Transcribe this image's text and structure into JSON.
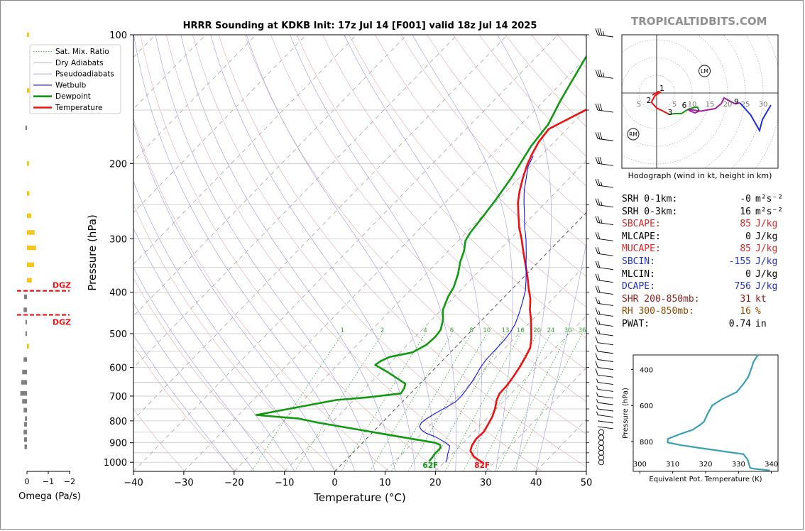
{
  "chart_data": {
    "type": "line",
    "title": "HRRR Sounding at KDKB Init: 17z Jul 14 [F001] valid 18z Jul 14 2025",
    "xlabel": "Temperature (°C)",
    "ylabel": "Pressure (hPa)",
    "xlim": [
      -40,
      50
    ],
    "ylim": [
      1050,
      100
    ],
    "yscale": "log",
    "x_ticks": [
      "−40",
      "−30",
      "−20",
      "−10",
      "0",
      "10",
      "20",
      "30",
      "40",
      "50"
    ],
    "x_tick_values": [
      -40,
      -30,
      -20,
      -10,
      0,
      10,
      20,
      30,
      40,
      50
    ],
    "y_ticks": [
      "100",
      "200",
      "300",
      "400",
      "500",
      "600",
      "700",
      "800",
      "900",
      "1000"
    ],
    "y_tick_values": [
      100,
      200,
      300,
      400,
      500,
      600,
      700,
      800,
      900,
      1000
    ],
    "legend": {
      "placement": "top-left",
      "entries": [
        {
          "name": "Sat. Mix. Ratio",
          "color": "#2ca02c",
          "style": "dotted"
        },
        {
          "name": "Dry Adiabats",
          "color": "#b0b0b0",
          "style": "solid"
        },
        {
          "name": "Pseudoadiabats",
          "color": "#9090d0",
          "style": "solid"
        },
        {
          "name": "Wetbulb",
          "color": "#1010e0",
          "style": "solid"
        },
        {
          "name": "Dewpoint",
          "color": "#119911",
          "style": "solid"
        },
        {
          "name": "Temperature",
          "color": "#ee1111",
          "style": "solid"
        }
      ]
    },
    "mixing_ratio_labels": [
      "1",
      "2",
      "4",
      "6",
      "8",
      "10",
      "13",
      "16",
      "20",
      "24",
      "30",
      "36"
    ],
    "surface_temperature_label": "82F",
    "surface_dewpoint_label": "62F",
    "series": [
      {
        "name": "Temperature",
        "color": "#ee1111",
        "points": [
          [
            28.0,
            1005
          ],
          [
            26.6,
            990
          ],
          [
            24.8,
            970
          ],
          [
            23.0,
            940
          ],
          [
            22.3,
            915
          ],
          [
            21.8,
            880
          ],
          [
            22.0,
            850
          ],
          [
            21.5,
            820
          ],
          [
            20.7,
            780
          ],
          [
            19.6,
            745
          ],
          [
            18.4,
            715
          ],
          [
            17.7,
            690
          ],
          [
            17.6,
            660
          ],
          [
            17.2,
            630
          ],
          [
            16.6,
            598
          ],
          [
            15.9,
            570
          ],
          [
            15.0,
            540
          ],
          [
            13.5,
            515
          ],
          [
            11.7,
            490
          ],
          [
            9.8,
            465
          ],
          [
            7.6,
            440
          ],
          [
            5.6,
            415
          ],
          [
            3.3,
            393
          ],
          [
            0.7,
            368
          ],
          [
            -2.0,
            345
          ],
          [
            -4.9,
            322
          ],
          [
            -7.8,
            300
          ],
          [
            -10.5,
            282
          ],
          [
            -13.0,
            264
          ],
          [
            -15.5,
            247
          ],
          [
            -17.4,
            232
          ],
          [
            -19.2,
            217
          ],
          [
            -20.9,
            202
          ],
          [
            -22.0,
            191
          ],
          [
            -23.1,
            178
          ],
          [
            -23.6,
            166
          ],
          [
            -20.2,
            151
          ],
          [
            -17.3,
            139
          ],
          [
            -14.1,
            127
          ],
          [
            -10.8,
            116
          ],
          [
            -8.0,
            108
          ],
          [
            -5.4,
            100
          ]
        ]
      },
      {
        "name": "Dewpoint",
        "color": "#119911",
        "points": [
          [
            16.8,
            995
          ],
          [
            16.7,
            975
          ],
          [
            16.5,
            955
          ],
          [
            16.5,
            925
          ],
          [
            15.8,
            910
          ],
          [
            14.4,
            900
          ],
          [
            5.8,
            870
          ],
          [
            -2.9,
            840
          ],
          [
            -12.6,
            808
          ],
          [
            -17.4,
            790
          ],
          [
            -26.5,
            775
          ],
          [
            -13.5,
            715
          ],
          [
            -7.8,
            705
          ],
          [
            -1.9,
            690
          ],
          [
            -2.3,
            670
          ],
          [
            -2.9,
            655
          ],
          [
            -8.7,
            615
          ],
          [
            -12.5,
            592
          ],
          [
            -12.2,
            580
          ],
          [
            -11.2,
            567
          ],
          [
            -7.5,
            553
          ],
          [
            -6.2,
            530
          ],
          [
            -6.0,
            508
          ],
          [
            -6.3,
            490
          ],
          [
            -7.7,
            465
          ],
          [
            -9.7,
            440
          ],
          [
            -11.2,
            410
          ],
          [
            -11.9,
            390
          ],
          [
            -13.6,
            363
          ],
          [
            -15.5,
            340
          ],
          [
            -16.9,
            320
          ],
          [
            -18.6,
            303
          ],
          [
            -19.2,
            290
          ],
          [
            -19.8,
            265
          ],
          [
            -20.5,
            242
          ],
          [
            -21.6,
            216
          ],
          [
            -22.6,
            200
          ],
          [
            -23.8,
            182
          ],
          [
            -24.6,
            162
          ],
          [
            -26.7,
            143
          ],
          [
            -28.2,
            129
          ],
          [
            -29.7,
            116
          ],
          [
            -30.7,
            108
          ],
          [
            -32.3,
            100
          ]
        ]
      },
      {
        "name": "Wetbulb",
        "color": "#1010e0",
        "points": [
          [
            20.3,
            1000
          ],
          [
            20.0,
            985
          ],
          [
            19.2,
            960
          ],
          [
            18.4,
            930
          ],
          [
            17.9,
            915
          ],
          [
            16.5,
            900
          ],
          [
            14.9,
            885
          ],
          [
            13.1,
            870
          ],
          [
            10.8,
            855
          ],
          [
            9.2,
            840
          ],
          [
            8.2,
            825
          ],
          [
            7.8,
            808
          ],
          [
            8.1,
            790
          ],
          [
            8.7,
            770
          ],
          [
            9.3,
            755
          ],
          [
            10.0,
            738
          ],
          [
            10.6,
            720
          ],
          [
            10.6,
            700
          ],
          [
            10.4,
            680
          ],
          [
            10.0,
            650
          ],
          [
            9.4,
            620
          ],
          [
            8.9,
            600
          ],
          [
            8.5,
            575
          ],
          [
            8.4,
            540
          ],
          [
            8.3,
            515
          ],
          [
            8.0,
            495
          ],
          [
            7.4,
            475
          ],
          [
            6.2,
            450
          ],
          [
            4.8,
            425
          ],
          [
            3.0,
            397
          ],
          [
            0.9,
            373
          ],
          [
            -1.6,
            348
          ],
          [
            -4.0,
            325
          ],
          [
            -6.8,
            301
          ],
          [
            -9.4,
            282
          ],
          [
            -11.8,
            264
          ],
          [
            -14.3,
            247
          ],
          [
            -16.5,
            232
          ],
          [
            -18.5,
            217
          ],
          [
            -20.5,
            203
          ],
          [
            -21.5,
            192
          ]
        ]
      }
    ],
    "wind_barbs_kt": [
      [
        1000,
        0
      ],
      [
        975,
        0
      ],
      [
        950,
        0
      ],
      [
        925,
        0
      ],
      [
        900,
        0
      ],
      [
        875,
        0
      ],
      [
        850,
        0
      ],
      [
        825,
        3
      ],
      [
        800,
        4
      ],
      [
        775,
        5
      ],
      [
        750,
        6
      ],
      [
        725,
        7
      ],
      [
        700,
        8
      ],
      [
        675,
        8
      ],
      [
        650,
        9
      ],
      [
        625,
        10
      ],
      [
        600,
        11
      ],
      [
        575,
        12
      ],
      [
        550,
        13
      ],
      [
        525,
        14
      ],
      [
        500,
        16
      ],
      [
        475,
        17
      ],
      [
        450,
        18
      ],
      [
        425,
        19
      ],
      [
        400,
        20
      ],
      [
        375,
        21
      ],
      [
        350,
        22
      ],
      [
        325,
        23
      ],
      [
        300,
        24
      ],
      [
        275,
        25
      ],
      [
        250,
        26
      ],
      [
        225,
        28
      ],
      [
        200,
        30
      ],
      [
        175,
        32
      ],
      [
        150,
        34
      ],
      [
        125,
        36
      ],
      [
        100,
        38
      ]
    ],
    "omega_panel": {
      "xlabel": "Omega (Pa/s)",
      "x_ticks": [
        "0",
        "−1",
        "−2"
      ],
      "dgz_label": "DGZ",
      "dgz_pressures": [
        397,
        452
      ],
      "bars": [
        [
          100,
          -0.02
        ],
        [
          135,
          -0.03
        ],
        [
          165,
          0.01
        ],
        [
          200,
          -0.02
        ],
        [
          235,
          -0.03
        ],
        [
          265,
          -0.07
        ],
        [
          290,
          -0.14
        ],
        [
          315,
          -0.17
        ],
        [
          345,
          -0.13
        ],
        [
          375,
          -0.08
        ],
        [
          410,
          0.04
        ],
        [
          440,
          0.05
        ],
        [
          470,
          0.01
        ],
        [
          500,
          0.01
        ],
        [
          535,
          -0.02
        ],
        [
          575,
          0.05
        ],
        [
          615,
          0.08
        ],
        [
          650,
          0.1
        ],
        [
          690,
          0.12
        ],
        [
          720,
          0.08
        ],
        [
          755,
          0.05
        ],
        [
          790,
          0.02
        ],
        [
          815,
          0.04
        ],
        [
          850,
          0.05
        ],
        [
          885,
          0.04
        ],
        [
          920,
          0.03
        ]
      ]
    },
    "hodograph": {
      "caption": "Hodograph (wind in kt, height in km)",
      "range_labels": [
        "5",
        "5",
        "10",
        "15",
        "20",
        "25",
        "30"
      ],
      "height_labels": [
        {
          "label": "1",
          "u": 1.5,
          "v": 0.6
        },
        {
          "label": "2",
          "u": -2.2,
          "v": -2.8
        },
        {
          "label": "3",
          "u": 3.8,
          "v": -6.2
        },
        {
          "label": "6",
          "u": 7.8,
          "v": -4.2
        },
        {
          "label": "9",
          "u": 22.5,
          "v": -3.2
        }
      ],
      "storm_motion": [
        {
          "label": "LM",
          "u": 13.5,
          "v": 6.2
        },
        {
          "label": "RM",
          "u": -6.6,
          "v": -11.6
        }
      ],
      "segments": [
        {
          "color": "#ee1111",
          "points": [
            [
              -1.2,
              -0.6
            ],
            [
              0.5,
              0.4
            ],
            [
              1.0,
              0.2
            ],
            [
              -0.5,
              -0.8
            ],
            [
              -1.5,
              -2.6
            ],
            [
              0.0,
              -4.2
            ],
            [
              2.0,
              -5.2
            ],
            [
              3.5,
              -6.0
            ]
          ]
        },
        {
          "color": "#119911",
          "points": [
            [
              3.5,
              -6.0
            ],
            [
              5.2,
              -5.8
            ],
            [
              7.0,
              -5.8
            ],
            [
              8.8,
              -4.6
            ],
            [
              10.5,
              -4.1
            ],
            [
              11.5,
              -4.0
            ],
            [
              12.0,
              -5.1
            ]
          ]
        },
        {
          "color": "#a020a0",
          "points": [
            [
              12.0,
              -5.1
            ],
            [
              10.8,
              -5.6
            ],
            [
              9.5,
              -5.1
            ],
            [
              8.8,
              -4.6
            ],
            [
              12.5,
              -5.1
            ],
            [
              16.5,
              -4.4
            ],
            [
              18.2,
              -3.0
            ],
            [
              19.0,
              -1.4
            ],
            [
              20.5,
              -2.2
            ],
            [
              22.0,
              -3.0
            ],
            [
              23.5,
              -2.8
            ]
          ]
        },
        {
          "color": "#1f2fe0",
          "points": [
            [
              23.5,
              -2.8
            ],
            [
              26.5,
              -6.2
            ],
            [
              29.0,
              -10.6
            ],
            [
              29.8,
              -7.5
            ],
            [
              32.2,
              -3.4
            ]
          ]
        }
      ]
    },
    "theta_e_panel": {
      "xlabel": "Equivalent Pot. Temperature (K)",
      "ylabel": "Pressure (hPa)",
      "x_ticks": [
        "300",
        "310",
        "320",
        "330",
        "340"
      ],
      "y_ticks": [
        "400",
        "600",
        "800"
      ],
      "color": "#3a9fb5",
      "points": [
        [
          339.5,
          960
        ],
        [
          334.5,
          950
        ],
        [
          333.5,
          945
        ],
        [
          332.8,
          900
        ],
        [
          331.5,
          870
        ],
        [
          318.0,
          835
        ],
        [
          312.5,
          820
        ],
        [
          308.5,
          805
        ],
        [
          308.5,
          785
        ],
        [
          312.0,
          760
        ],
        [
          316.0,
          735
        ],
        [
          318.5,
          705
        ],
        [
          319.5,
          690
        ],
        [
          320.5,
          650
        ],
        [
          322.0,
          600
        ],
        [
          325.0,
          565
        ],
        [
          329.5,
          525
        ],
        [
          331.5,
          480
        ],
        [
          333.0,
          440
        ],
        [
          334.0,
          390
        ],
        [
          334.5,
          360
        ],
        [
          335.5,
          330
        ],
        [
          336.0,
          320
        ]
      ]
    }
  },
  "brand": "TROPICALTIDBITS.COM",
  "indices": [
    {
      "label": "SRH 0-1km:",
      "value": "-0",
      "unit": "m²s⁻²",
      "color": "dark"
    },
    {
      "label": "SRH 0-3km:",
      "value": "16",
      "unit": "m²s⁻²",
      "color": "dark"
    },
    {
      "label": "SBCAPE:",
      "value": "85",
      "unit": "J/kg",
      "color": "red"
    },
    {
      "label": "MLCAPE:",
      "value": "0",
      "unit": "J/kg",
      "color": "dark"
    },
    {
      "label": "MUCAPE:",
      "value": "85",
      "unit": "J/kg",
      "color": "red"
    },
    {
      "label": "SBCIN:",
      "value": "-155",
      "unit": "J/kg",
      "color": "blue"
    },
    {
      "label": "MLCIN:",
      "value": "0",
      "unit": "J/kg",
      "color": "dark"
    },
    {
      "label": "DCAPE:",
      "value": "756",
      "unit": "J/kg",
      "color": "blue"
    },
    {
      "label": "SHR 200-850mb:",
      "value": "31",
      "unit": "kt",
      "color": "maroon"
    },
    {
      "label": "RH 300-850mb:",
      "value": "16",
      "unit": "%",
      "color": "brown"
    },
    {
      "label": "PWAT:",
      "value": "0.74",
      "unit": "in",
      "color": "dark"
    }
  ]
}
